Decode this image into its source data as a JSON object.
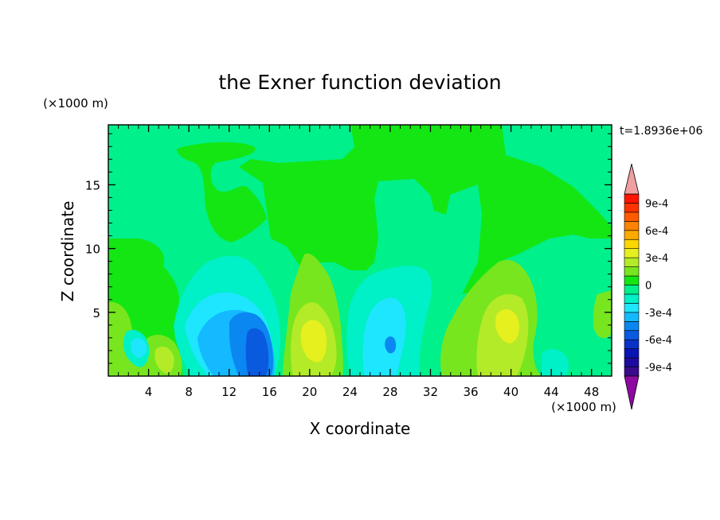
{
  "chart_data": {
    "type": "heatmap",
    "title": "the Exner function deviation",
    "xlabel": "X coordinate",
    "ylabel": "Z coordinate",
    "x_unit": "(×1000 m)",
    "y_unit": "(×1000 m)",
    "time_label": "t=1.8936e+06",
    "xlim": [
      0,
      50
    ],
    "ylim": [
      0,
      19.7
    ],
    "x_ticks": [
      4,
      8,
      12,
      16,
      20,
      24,
      28,
      32,
      36,
      40,
      44,
      48
    ],
    "y_ticks": [
      5,
      10,
      15
    ],
    "colorbar": {
      "labels": [
        "9e-4",
        "6e-4",
        "3e-4",
        "0",
        "-3e-4",
        "-6e-4",
        "-9e-4"
      ],
      "levels": [
        -0.001,
        -0.0009,
        -0.0008,
        -0.0007,
        -0.0006,
        -0.0005,
        -0.0004,
        -0.0003,
        -0.0002,
        -0.0001,
        0,
        0.0001,
        0.0002,
        0.0003,
        0.0004,
        0.0005,
        0.0006,
        0.0007,
        0.0008,
        0.0009,
        0.001
      ],
      "colors": [
        "#3a0a8c",
        "#1e0aa0",
        "#0a14b4",
        "#0a32c8",
        "#0a5ae0",
        "#0a87f0",
        "#14b9ff",
        "#1ee6ff",
        "#00f0c8",
        "#00f08c",
        "#14e614",
        "#78e61e",
        "#b4eb28",
        "#e6f01e",
        "#ffd700",
        "#ffaa00",
        "#ff8200",
        "#ff5a00",
        "#ff3200",
        "#ff1400"
      ],
      "under_color": "#8c0aa0",
      "over_color": "#f0a0a0"
    },
    "features": [
      {
        "kind": "region",
        "desc": "low",
        "x": 14.8,
        "z": 2.0,
        "value": -0.00065
      },
      {
        "kind": "region",
        "desc": "low",
        "x": 28.0,
        "z": 2.8,
        "value": -0.0004
      },
      {
        "kind": "region",
        "desc": "low",
        "x": 3.0,
        "z": 2.5,
        "value": -0.0002
      },
      {
        "kind": "region",
        "desc": "high",
        "x": 20.5,
        "z": 4.0,
        "value": 0.00035
      },
      {
        "kind": "region",
        "desc": "high",
        "x": 39.5,
        "z": 4.5,
        "value": 0.00035
      },
      {
        "kind": "region",
        "desc": "high",
        "x": 5.8,
        "z": 1.8,
        "value": 0.0002
      }
    ]
  }
}
